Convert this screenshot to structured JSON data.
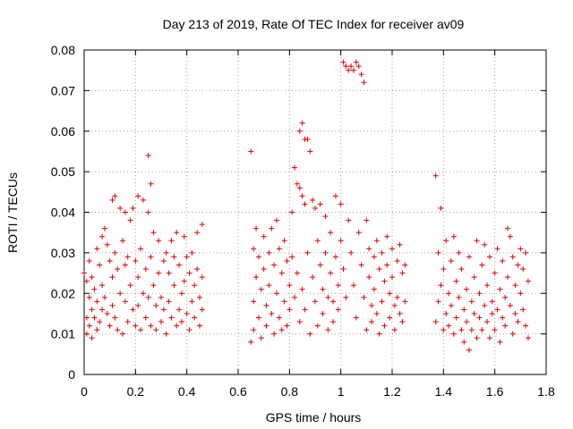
{
  "chart_data": {
    "type": "scatter",
    "title": "Day 213 of 2019, Rate Of TEC Index for receiver av09",
    "xlabel": "GPS time / hours",
    "ylabel": "ROTI / TECUs",
    "xlim": [
      0,
      1.8
    ],
    "ylim": [
      0,
      0.08
    ],
    "x_ticks": [
      "0",
      "0.2",
      "0.4",
      "0.6",
      "0.8",
      "1",
      "1.2",
      "1.4",
      "1.6",
      "1.8"
    ],
    "y_ticks": [
      "0",
      "0.01",
      "0.02",
      "0.03",
      "0.04",
      "0.05",
      "0.06",
      "0.07",
      "0.08"
    ],
    "grid": true,
    "marker": "+",
    "color": "#e00000",
    "series": [
      {
        "points": [
          [
            0.0,
            0.025
          ],
          [
            0.01,
            0.01
          ],
          [
            0.01,
            0.014
          ],
          [
            0.01,
            0.023
          ],
          [
            0.02,
            0.028
          ],
          [
            0.02,
            0.012
          ],
          [
            0.02,
            0.019
          ],
          [
            0.03,
            0.009
          ],
          [
            0.03,
            0.016
          ],
          [
            0.03,
            0.024
          ],
          [
            0.04,
            0.014
          ],
          [
            0.04,
            0.021
          ],
          [
            0.05,
            0.011
          ],
          [
            0.05,
            0.031
          ],
          [
            0.05,
            0.018
          ],
          [
            0.06,
            0.027
          ],
          [
            0.06,
            0.013
          ],
          [
            0.07,
            0.034
          ],
          [
            0.07,
            0.022
          ],
          [
            0.07,
            0.016
          ],
          [
            0.08,
            0.036
          ],
          [
            0.08,
            0.019
          ],
          [
            0.09,
            0.032
          ],
          [
            0.09,
            0.015
          ],
          [
            0.1,
            0.028
          ],
          [
            0.1,
            0.012
          ],
          [
            0.11,
            0.043
          ],
          [
            0.11,
            0.024
          ],
          [
            0.11,
            0.017
          ],
          [
            0.12,
            0.044
          ],
          [
            0.12,
            0.03
          ],
          [
            0.12,
            0.014
          ],
          [
            0.13,
            0.026
          ],
          [
            0.13,
            0.011
          ],
          [
            0.14,
            0.041
          ],
          [
            0.14,
            0.02
          ],
          [
            0.15,
            0.033
          ],
          [
            0.15,
            0.01
          ],
          [
            0.16,
            0.04
          ],
          [
            0.16,
            0.027
          ],
          [
            0.16,
            0.018
          ],
          [
            0.17,
            0.029
          ],
          [
            0.17,
            0.013
          ],
          [
            0.18,
            0.038
          ],
          [
            0.18,
            0.022
          ],
          [
            0.19,
            0.041
          ],
          [
            0.19,
            0.016
          ],
          [
            0.2,
            0.028
          ],
          [
            0.2,
            0.012
          ],
          [
            0.21,
            0.044
          ],
          [
            0.21,
            0.024
          ],
          [
            0.21,
            0.017
          ],
          [
            0.22,
            0.031
          ],
          [
            0.22,
            0.011
          ],
          [
            0.23,
            0.043
          ],
          [
            0.23,
            0.02
          ],
          [
            0.24,
            0.026
          ],
          [
            0.24,
            0.014
          ],
          [
            0.25,
            0.054
          ],
          [
            0.25,
            0.04
          ],
          [
            0.25,
            0.019
          ],
          [
            0.26,
            0.047
          ],
          [
            0.26,
            0.029
          ],
          [
            0.26,
            0.012
          ],
          [
            0.27,
            0.035
          ],
          [
            0.27,
            0.022
          ],
          [
            0.28,
            0.017
          ],
          [
            0.28,
            0.011
          ],
          [
            0.29,
            0.033
          ],
          [
            0.29,
            0.025
          ],
          [
            0.3,
            0.019
          ],
          [
            0.3,
            0.013
          ],
          [
            0.31,
            0.028
          ],
          [
            0.31,
            0.016
          ],
          [
            0.32,
            0.03
          ],
          [
            0.32,
            0.01
          ],
          [
            0.33,
            0.025
          ],
          [
            0.33,
            0.018
          ],
          [
            0.34,
            0.033
          ],
          [
            0.34,
            0.014
          ],
          [
            0.35,
            0.029
          ],
          [
            0.35,
            0.022
          ],
          [
            0.36,
            0.012
          ],
          [
            0.36,
            0.035
          ],
          [
            0.37,
            0.027
          ],
          [
            0.37,
            0.016
          ],
          [
            0.38,
            0.02
          ],
          [
            0.38,
            0.013
          ],
          [
            0.39,
            0.034
          ],
          [
            0.39,
            0.023
          ],
          [
            0.4,
            0.029
          ],
          [
            0.4,
            0.015
          ],
          [
            0.41,
            0.025
          ],
          [
            0.41,
            0.011
          ],
          [
            0.42,
            0.03
          ],
          [
            0.42,
            0.018
          ],
          [
            0.43,
            0.022
          ],
          [
            0.43,
            0.014
          ],
          [
            0.44,
            0.035
          ],
          [
            0.44,
            0.026
          ],
          [
            0.45,
            0.019
          ],
          [
            0.45,
            0.012
          ],
          [
            0.46,
            0.037
          ],
          [
            0.46,
            0.024
          ],
          [
            0.46,
            0.016
          ],
          [
            0.65,
            0.055
          ],
          [
            0.65,
            0.008
          ],
          [
            0.66,
            0.031
          ],
          [
            0.66,
            0.018
          ],
          [
            0.66,
            0.011
          ],
          [
            0.67,
            0.036
          ],
          [
            0.67,
            0.024
          ],
          [
            0.68,
            0.029
          ],
          [
            0.68,
            0.014
          ],
          [
            0.69,
            0.021
          ],
          [
            0.69,
            0.009
          ],
          [
            0.7,
            0.034
          ],
          [
            0.7,
            0.026
          ],
          [
            0.71,
            0.017
          ],
          [
            0.71,
            0.012
          ],
          [
            0.72,
            0.03
          ],
          [
            0.72,
            0.022
          ],
          [
            0.73,
            0.036
          ],
          [
            0.73,
            0.015
          ],
          [
            0.74,
            0.027
          ],
          [
            0.74,
            0.01
          ],
          [
            0.75,
            0.038
          ],
          [
            0.75,
            0.02
          ],
          [
            0.76,
            0.031
          ],
          [
            0.76,
            0.014
          ],
          [
            0.77,
            0.025
          ],
          [
            0.77,
            0.011
          ],
          [
            0.78,
            0.033
          ],
          [
            0.78,
            0.018
          ],
          [
            0.79,
            0.028
          ],
          [
            0.79,
            0.012
          ],
          [
            0.8,
            0.022
          ],
          [
            0.8,
            0.016
          ],
          [
            0.81,
            0.04
          ],
          [
            0.81,
            0.029
          ],
          [
            0.82,
            0.051
          ],
          [
            0.82,
            0.019
          ],
          [
            0.83,
            0.047
          ],
          [
            0.83,
            0.025
          ],
          [
            0.84,
            0.06
          ],
          [
            0.84,
            0.046
          ],
          [
            0.84,
            0.013
          ],
          [
            0.85,
            0.062
          ],
          [
            0.85,
            0.044
          ],
          [
            0.85,
            0.021
          ],
          [
            0.86,
            0.058
          ],
          [
            0.86,
            0.042
          ],
          [
            0.86,
            0.016
          ],
          [
            0.87,
            0.058
          ],
          [
            0.87,
            0.03
          ],
          [
            0.88,
            0.055
          ],
          [
            0.88,
            0.01
          ],
          [
            0.89,
            0.043
          ],
          [
            0.89,
            0.024
          ],
          [
            0.9,
            0.041
          ],
          [
            0.9,
            0.018
          ],
          [
            0.91,
            0.033
          ],
          [
            0.91,
            0.012
          ],
          [
            0.92,
            0.042
          ],
          [
            0.92,
            0.027
          ],
          [
            0.93,
            0.021
          ],
          [
            0.93,
            0.015
          ],
          [
            0.94,
            0.039
          ],
          [
            0.94,
            0.03
          ],
          [
            0.95,
            0.019
          ],
          [
            0.95,
            0.011
          ],
          [
            0.96,
            0.035
          ],
          [
            0.96,
            0.025
          ],
          [
            0.97,
            0.018
          ],
          [
            0.97,
            0.013
          ],
          [
            0.98,
            0.044
          ],
          [
            0.98,
            0.029
          ],
          [
            0.99,
            0.022
          ],
          [
            0.99,
            0.016
          ],
          [
            1.0,
            0.042
          ],
          [
            1.0,
            0.033
          ],
          [
            1.01,
            0.077
          ],
          [
            1.01,
            0.026
          ],
          [
            1.02,
            0.076
          ],
          [
            1.02,
            0.019
          ],
          [
            1.03,
            0.075
          ],
          [
            1.03,
            0.038
          ],
          [
            1.04,
            0.076
          ],
          [
            1.04,
            0.03
          ],
          [
            1.05,
            0.075
          ],
          [
            1.05,
            0.022
          ],
          [
            1.06,
            0.077
          ],
          [
            1.06,
            0.014
          ],
          [
            1.07,
            0.076
          ],
          [
            1.07,
            0.035
          ],
          [
            1.08,
            0.074
          ],
          [
            1.08,
            0.027
          ],
          [
            1.09,
            0.072
          ],
          [
            1.09,
            0.019
          ],
          [
            1.1,
            0.038
          ],
          [
            1.1,
            0.011
          ],
          [
            1.11,
            0.031
          ],
          [
            1.11,
            0.024
          ],
          [
            1.12,
            0.017
          ],
          [
            1.12,
            0.013
          ],
          [
            1.13,
            0.029
          ],
          [
            1.13,
            0.021
          ],
          [
            1.14,
            0.033
          ],
          [
            1.14,
            0.015
          ],
          [
            1.15,
            0.026
          ],
          [
            1.15,
            0.01
          ],
          [
            1.16,
            0.03
          ],
          [
            1.16,
            0.018
          ],
          [
            1.17,
            0.023
          ],
          [
            1.17,
            0.012
          ],
          [
            1.18,
            0.034
          ],
          [
            1.18,
            0.027
          ],
          [
            1.19,
            0.02
          ],
          [
            1.19,
            0.014
          ],
          [
            1.2,
            0.031
          ],
          [
            1.2,
            0.024
          ],
          [
            1.21,
            0.017
          ],
          [
            1.21,
            0.011
          ],
          [
            1.22,
            0.028
          ],
          [
            1.22,
            0.019
          ],
          [
            1.23,
            0.032
          ],
          [
            1.23,
            0.015
          ],
          [
            1.24,
            0.025
          ],
          [
            1.24,
            0.013
          ],
          [
            1.25,
            0.027
          ],
          [
            1.25,
            0.018
          ],
          [
            1.37,
            0.049
          ],
          [
            1.37,
            0.013
          ],
          [
            1.38,
            0.03
          ],
          [
            1.38,
            0.018
          ],
          [
            1.39,
            0.041
          ],
          [
            1.39,
            0.022
          ],
          [
            1.4,
            0.011
          ],
          [
            1.4,
            0.026
          ],
          [
            1.41,
            0.015
          ],
          [
            1.41,
            0.033
          ],
          [
            1.42,
            0.02
          ],
          [
            1.42,
            0.012
          ],
          [
            1.43,
            0.028
          ],
          [
            1.43,
            0.017
          ],
          [
            1.44,
            0.034
          ],
          [
            1.44,
            0.01
          ],
          [
            1.45,
            0.023
          ],
          [
            1.45,
            0.014
          ],
          [
            1.46,
            0.03
          ],
          [
            1.46,
            0.019
          ],
          [
            1.47,
            0.011
          ],
          [
            1.47,
            0.026
          ],
          [
            1.48,
            0.016
          ],
          [
            1.48,
            0.008
          ],
          [
            1.49,
            0.021
          ],
          [
            1.49,
            0.013
          ],
          [
            1.5,
            0.029
          ],
          [
            1.5,
            0.006
          ],
          [
            1.51,
            0.018
          ],
          [
            1.51,
            0.011
          ],
          [
            1.52,
            0.024
          ],
          [
            1.52,
            0.015
          ],
          [
            1.53,
            0.033
          ],
          [
            1.53,
            0.009
          ],
          [
            1.54,
            0.02
          ],
          [
            1.54,
            0.014
          ],
          [
            1.55,
            0.027
          ],
          [
            1.55,
            0.011
          ],
          [
            1.56,
            0.017
          ],
          [
            1.56,
            0.032
          ],
          [
            1.57,
            0.022
          ],
          [
            1.57,
            0.013
          ],
          [
            1.58,
            0.029
          ],
          [
            1.58,
            0.009
          ],
          [
            1.59,
            0.018
          ],
          [
            1.59,
            0.015
          ],
          [
            1.6,
            0.025
          ],
          [
            1.6,
            0.011
          ],
          [
            1.61,
            0.031
          ],
          [
            1.61,
            0.016
          ],
          [
            1.62,
            0.021
          ],
          [
            1.62,
            0.008
          ],
          [
            1.63,
            0.028
          ],
          [
            1.63,
            0.014
          ],
          [
            1.64,
            0.019
          ],
          [
            1.64,
            0.012
          ],
          [
            1.65,
            0.036
          ],
          [
            1.65,
            0.024
          ],
          [
            1.66,
            0.034
          ],
          [
            1.66,
            0.017
          ],
          [
            1.67,
            0.029
          ],
          [
            1.67,
            0.01
          ],
          [
            1.68,
            0.022
          ],
          [
            1.68,
            0.015
          ],
          [
            1.69,
            0.027
          ],
          [
            1.69,
            0.013
          ],
          [
            1.7,
            0.031
          ],
          [
            1.7,
            0.02
          ],
          [
            1.71,
            0.026
          ],
          [
            1.71,
            0.016
          ],
          [
            1.72,
            0.03
          ],
          [
            1.72,
            0.012
          ],
          [
            1.73,
            0.023
          ],
          [
            1.73,
            0.009
          ]
        ]
      }
    ]
  }
}
